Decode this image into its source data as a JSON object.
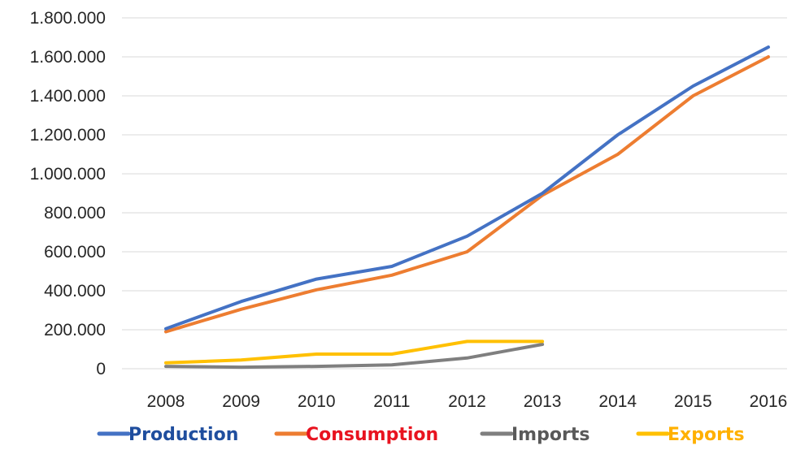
{
  "chart_data": {
    "type": "line",
    "title": "",
    "xlabel": "",
    "ylabel": "",
    "categories": [
      "2008",
      "2009",
      "2010",
      "2011",
      "2012",
      "2013",
      "2014",
      "2015",
      "2016"
    ],
    "ylim": [
      0,
      1800000
    ],
    "yticks": [
      0,
      200000,
      400000,
      600000,
      800000,
      1000000,
      1200000,
      1400000,
      1600000,
      1800000
    ],
    "ytick_labels": [
      "0",
      "200.000",
      "400.000",
      "600.000",
      "800.000",
      "1.000.000",
      "1.200.000",
      "1.400.000",
      "1.600.000",
      "1.800.000"
    ],
    "grid": true,
    "legend_position": "bottom",
    "series": [
      {
        "name": "Production",
        "color": "#4472C4",
        "values": [
          205000,
          345000,
          460000,
          525000,
          680000,
          900000,
          1200000,
          1450000,
          1650000
        ]
      },
      {
        "name": "Consumption",
        "color": "#ED7D31",
        "values": [
          190000,
          305000,
          405000,
          480000,
          600000,
          890000,
          1100000,
          1400000,
          1600000
        ]
      },
      {
        "name": "Imports",
        "color": "#7F7F7F",
        "values": [
          12000,
          8000,
          12000,
          20000,
          55000,
          125000,
          null,
          null,
          null
        ]
      },
      {
        "name": "Exports",
        "color": "#FFC000",
        "values": [
          30000,
          45000,
          75000,
          75000,
          140000,
          140000,
          null,
          null,
          null
        ]
      }
    ],
    "legend_text_colors": {
      "Production": "#1F4E9E",
      "Consumption": "#E8131F",
      "Imports": "#595959",
      "Exports": "#FFB000"
    }
  }
}
